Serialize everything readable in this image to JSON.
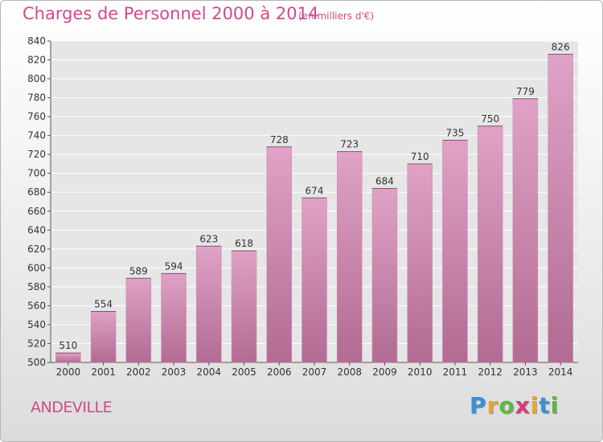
{
  "title": "Charges de Personnel 2000 à 2014",
  "subtitle": "(en milliers d'€)",
  "commune": "ANDEVILLE",
  "logo": {
    "letters": [
      "P",
      "r",
      "o",
      "x",
      "i",
      "t",
      "i"
    ],
    "colors": [
      "#3a8fd8",
      "#e8a534",
      "#5bb946",
      "#d63a7a",
      "#e8a534",
      "#3a8fd8",
      "#5bb946"
    ]
  },
  "colors": {
    "bar": "#d486b2",
    "bar_dark": "#b66892",
    "title": "#d04a8b"
  },
  "chart_data": {
    "type": "bar",
    "title": "Charges de Personnel 2000 à 2014",
    "subtitle": "(en milliers d'€)",
    "categories": [
      "2000",
      "2001",
      "2002",
      "2003",
      "2004",
      "2005",
      "2006",
      "2007",
      "2008",
      "2009",
      "2010",
      "2011",
      "2012",
      "2013",
      "2014"
    ],
    "values": [
      510,
      554,
      589,
      594,
      623,
      618,
      728,
      674,
      723,
      684,
      710,
      735,
      750,
      779,
      826
    ],
    "ylim": [
      500,
      840
    ],
    "ytick_step": 20,
    "grid": true,
    "legend": false
  }
}
